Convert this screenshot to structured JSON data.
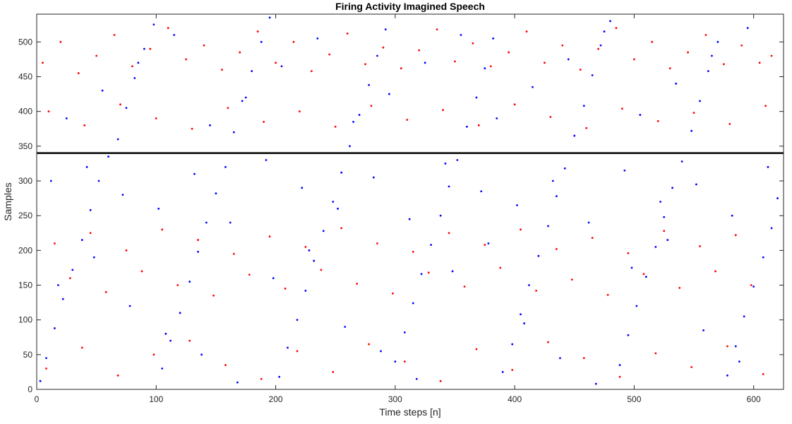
{
  "chart_data": {
    "type": "scatter",
    "title": "Firing Activity Imagined Speech",
    "xlabel": "Time steps [n]",
    "ylabel": "Samples",
    "xlim": [
      0,
      625
    ],
    "ylim": [
      0,
      540
    ],
    "xticks": [
      0,
      100,
      200,
      300,
      400,
      500,
      600
    ],
    "yticks": [
      0,
      50,
      100,
      150,
      200,
      250,
      300,
      350,
      400,
      450,
      500
    ],
    "grid": false,
    "legend": "none",
    "separator": {
      "y": 340,
      "color": "#000000"
    },
    "series": [
      {
        "color": "#0000ff",
        "marker": "dot",
        "points": [
          [
            3,
            12
          ],
          [
            8,
            45
          ],
          [
            15,
            88
          ],
          [
            22,
            130
          ],
          [
            30,
            172
          ],
          [
            38,
            215
          ],
          [
            45,
            258
          ],
          [
            52,
            300
          ],
          [
            60,
            335
          ],
          [
            68,
            360
          ],
          [
            75,
            405
          ],
          [
            82,
            448
          ],
          [
            90,
            490
          ],
          [
            98,
            525
          ],
          [
            105,
            30
          ],
          [
            112,
            70
          ],
          [
            120,
            110
          ],
          [
            128,
            155
          ],
          [
            135,
            198
          ],
          [
            142,
            240
          ],
          [
            150,
            282
          ],
          [
            158,
            320
          ],
          [
            165,
            370
          ],
          [
            172,
            415
          ],
          [
            180,
            458
          ],
          [
            188,
            500
          ],
          [
            195,
            535
          ],
          [
            203,
            18
          ],
          [
            210,
            60
          ],
          [
            218,
            100
          ],
          [
            225,
            142
          ],
          [
            232,
            185
          ],
          [
            240,
            228
          ],
          [
            248,
            270
          ],
          [
            255,
            312
          ],
          [
            262,
            350
          ],
          [
            270,
            395
          ],
          [
            278,
            438
          ],
          [
            285,
            480
          ],
          [
            292,
            518
          ],
          [
            300,
            40
          ],
          [
            308,
            82
          ],
          [
            315,
            124
          ],
          [
            322,
            166
          ],
          [
            330,
            208
          ],
          [
            338,
            250
          ],
          [
            345,
            292
          ],
          [
            352,
            330
          ],
          [
            360,
            378
          ],
          [
            368,
            420
          ],
          [
            375,
            462
          ],
          [
            382,
            505
          ],
          [
            390,
            25
          ],
          [
            398,
            65
          ],
          [
            405,
            108
          ],
          [
            412,
            150
          ],
          [
            420,
            192
          ],
          [
            428,
            235
          ],
          [
            435,
            278
          ],
          [
            442,
            318
          ],
          [
            450,
            365
          ],
          [
            458,
            408
          ],
          [
            465,
            452
          ],
          [
            472,
            495
          ],
          [
            480,
            530
          ],
          [
            488,
            35
          ],
          [
            495,
            78
          ],
          [
            502,
            120
          ],
          [
            510,
            162
          ],
          [
            518,
            205
          ],
          [
            525,
            248
          ],
          [
            532,
            290
          ],
          [
            540,
            328
          ],
          [
            548,
            372
          ],
          [
            555,
            415
          ],
          [
            562,
            458
          ],
          [
            570,
            500
          ],
          [
            578,
            20
          ],
          [
            585,
            62
          ],
          [
            592,
            105
          ],
          [
            600,
            148
          ],
          [
            608,
            190
          ],
          [
            615,
            232
          ],
          [
            620,
            275
          ],
          [
            12,
            300
          ],
          [
            42,
            320
          ],
          [
            72,
            280
          ],
          [
            102,
            260
          ],
          [
            132,
            310
          ],
          [
            162,
            240
          ],
          [
            192,
            330
          ],
          [
            222,
            290
          ],
          [
            252,
            260
          ],
          [
            282,
            305
          ],
          [
            312,
            245
          ],
          [
            342,
            325
          ],
          [
            372,
            285
          ],
          [
            402,
            265
          ],
          [
            432,
            300
          ],
          [
            462,
            240
          ],
          [
            492,
            315
          ],
          [
            522,
            270
          ],
          [
            552,
            295
          ],
          [
            582,
            250
          ],
          [
            612,
            320
          ],
          [
            25,
            390
          ],
          [
            55,
            430
          ],
          [
            85,
            470
          ],
          [
            115,
            510
          ],
          [
            145,
            380
          ],
          [
            175,
            420
          ],
          [
            205,
            465
          ],
          [
            235,
            505
          ],
          [
            265,
            385
          ],
          [
            295,
            425
          ],
          [
            325,
            470
          ],
          [
            355,
            510
          ],
          [
            385,
            390
          ],
          [
            415,
            435
          ],
          [
            445,
            475
          ],
          [
            475,
            515
          ],
          [
            505,
            395
          ],
          [
            535,
            440
          ],
          [
            565,
            480
          ],
          [
            595,
            520
          ],
          [
            18,
            150
          ],
          [
            48,
            190
          ],
          [
            78,
            120
          ],
          [
            108,
            80
          ],
          [
            138,
            50
          ],
          [
            168,
            10
          ],
          [
            198,
            160
          ],
          [
            228,
            200
          ],
          [
            258,
            90
          ],
          [
            288,
            55
          ],
          [
            318,
            15
          ],
          [
            348,
            170
          ],
          [
            378,
            210
          ],
          [
            408,
            95
          ],
          [
            438,
            45
          ],
          [
            468,
            8
          ],
          [
            498,
            175
          ],
          [
            528,
            215
          ],
          [
            558,
            85
          ],
          [
            588,
            40
          ]
        ]
      },
      {
        "color": "#ff0000",
        "marker": "dot",
        "points": [
          [
            5,
            470
          ],
          [
            20,
            500
          ],
          [
            35,
            455
          ],
          [
            50,
            480
          ],
          [
            65,
            510
          ],
          [
            80,
            465
          ],
          [
            95,
            490
          ],
          [
            110,
            520
          ],
          [
            125,
            475
          ],
          [
            140,
            495
          ],
          [
            155,
            460
          ],
          [
            170,
            485
          ],
          [
            185,
            515
          ],
          [
            200,
            470
          ],
          [
            215,
            500
          ],
          [
            230,
            458
          ],
          [
            245,
            482
          ],
          [
            260,
            512
          ],
          [
            275,
            468
          ],
          [
            290,
            492
          ],
          [
            305,
            462
          ],
          [
            320,
            488
          ],
          [
            335,
            518
          ],
          [
            350,
            472
          ],
          [
            365,
            498
          ],
          [
            380,
            465
          ],
          [
            395,
            485
          ],
          [
            410,
            515
          ],
          [
            425,
            470
          ],
          [
            440,
            495
          ],
          [
            455,
            460
          ],
          [
            470,
            490
          ],
          [
            485,
            520
          ],
          [
            500,
            475
          ],
          [
            515,
            500
          ],
          [
            530,
            462
          ],
          [
            545,
            485
          ],
          [
            560,
            510
          ],
          [
            575,
            468
          ],
          [
            590,
            495
          ],
          [
            605,
            470
          ],
          [
            615,
            480
          ],
          [
            10,
            400
          ],
          [
            40,
            380
          ],
          [
            70,
            410
          ],
          [
            100,
            390
          ],
          [
            130,
            375
          ],
          [
            160,
            405
          ],
          [
            190,
            385
          ],
          [
            220,
            400
          ],
          [
            250,
            378
          ],
          [
            280,
            408
          ],
          [
            310,
            388
          ],
          [
            340,
            402
          ],
          [
            370,
            380
          ],
          [
            400,
            410
          ],
          [
            430,
            392
          ],
          [
            460,
            376
          ],
          [
            490,
            404
          ],
          [
            520,
            386
          ],
          [
            550,
            398
          ],
          [
            580,
            382
          ],
          [
            610,
            408
          ],
          [
            15,
            210
          ],
          [
            45,
            225
          ],
          [
            75,
            200
          ],
          [
            105,
            230
          ],
          [
            135,
            215
          ],
          [
            165,
            195
          ],
          [
            195,
            220
          ],
          [
            225,
            205
          ],
          [
            255,
            232
          ],
          [
            285,
            210
          ],
          [
            315,
            198
          ],
          [
            345,
            225
          ],
          [
            375,
            208
          ],
          [
            405,
            230
          ],
          [
            435,
            202
          ],
          [
            465,
            218
          ],
          [
            495,
            196
          ],
          [
            525,
            228
          ],
          [
            555,
            206
          ],
          [
            585,
            222
          ],
          [
            28,
            160
          ],
          [
            58,
            140
          ],
          [
            88,
            170
          ],
          [
            118,
            150
          ],
          [
            148,
            135
          ],
          [
            178,
            165
          ],
          [
            208,
            145
          ],
          [
            238,
            172
          ],
          [
            268,
            152
          ],
          [
            298,
            138
          ],
          [
            328,
            168
          ],
          [
            358,
            148
          ],
          [
            388,
            175
          ],
          [
            418,
            142
          ],
          [
            448,
            158
          ],
          [
            478,
            136
          ],
          [
            508,
            166
          ],
          [
            538,
            146
          ],
          [
            568,
            170
          ],
          [
            598,
            150
          ],
          [
            8,
            30
          ],
          [
            38,
            60
          ],
          [
            68,
            20
          ],
          [
            98,
            50
          ],
          [
            128,
            70
          ],
          [
            158,
            35
          ],
          [
            188,
            15
          ],
          [
            218,
            55
          ],
          [
            248,
            25
          ],
          [
            278,
            65
          ],
          [
            308,
            40
          ],
          [
            338,
            12
          ],
          [
            368,
            58
          ],
          [
            398,
            28
          ],
          [
            428,
            68
          ],
          [
            458,
            45
          ],
          [
            488,
            18
          ],
          [
            518,
            52
          ],
          [
            548,
            32
          ],
          [
            578,
            62
          ],
          [
            608,
            22
          ]
        ]
      }
    ]
  }
}
